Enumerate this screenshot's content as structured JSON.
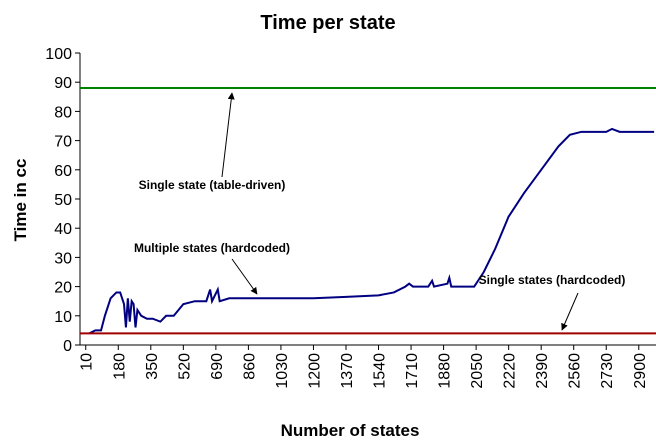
{
  "chart_data": {
    "type": "line",
    "title": "Time per state",
    "xlabel": "Number of states",
    "ylabel": "Time in cc",
    "xlim": [
      -20,
      2990
    ],
    "ylim": [
      0,
      100
    ],
    "xticks": [
      10,
      180,
      350,
      520,
      690,
      860,
      1030,
      1200,
      1370,
      1540,
      1710,
      1880,
      2050,
      2220,
      2390,
      2560,
      2730,
      2900
    ],
    "yticks": [
      0,
      10,
      20,
      30,
      40,
      50,
      60,
      70,
      80,
      90,
      100
    ],
    "grid": false,
    "series": [
      {
        "color": "#000080",
        "x": [
          30,
          60,
          90,
          110,
          140,
          170,
          190,
          210,
          220,
          230,
          240,
          250,
          260,
          270,
          280,
          300,
          330,
          360,
          400,
          430,
          470,
          520,
          580,
          640,
          660,
          670,
          700,
          710,
          760,
          860,
          1030,
          1200,
          1370,
          1540,
          1620,
          1680,
          1700,
          1720,
          1800,
          1820,
          1830,
          1900,
          1910,
          1920,
          2000,
          2040,
          2060,
          2090,
          2150,
          2220,
          2300,
          2390,
          2480,
          2540,
          2600,
          2730,
          2760,
          2800,
          2900,
          2980
        ],
        "values": [
          4,
          5,
          5,
          10,
          16,
          18,
          18,
          14,
          6,
          16,
          8,
          15,
          14,
          6,
          12,
          10,
          9,
          9,
          8,
          10,
          10,
          14,
          15,
          15,
          19,
          15,
          19,
          15,
          16,
          16,
          16,
          16,
          16.5,
          17,
          18,
          20,
          21,
          20,
          20,
          22,
          20,
          21,
          23,
          20,
          20,
          20,
          22,
          25,
          33,
          44,
          52,
          60,
          68,
          72,
          73,
          73,
          74,
          73,
          73,
          73
        ]
      },
      {
        "color": "#008000",
        "x": [
          -20,
          2990
        ],
        "values": [
          88,
          88
        ]
      },
      {
        "color": "#a00000",
        "x": [
          -20,
          2990
        ],
        "values": [
          4,
          4
        ]
      }
    ],
    "annotations": [
      "Single state (table-driven)",
      "Multiple states (hardcoded)",
      "Single states (hardcoded)"
    ]
  }
}
